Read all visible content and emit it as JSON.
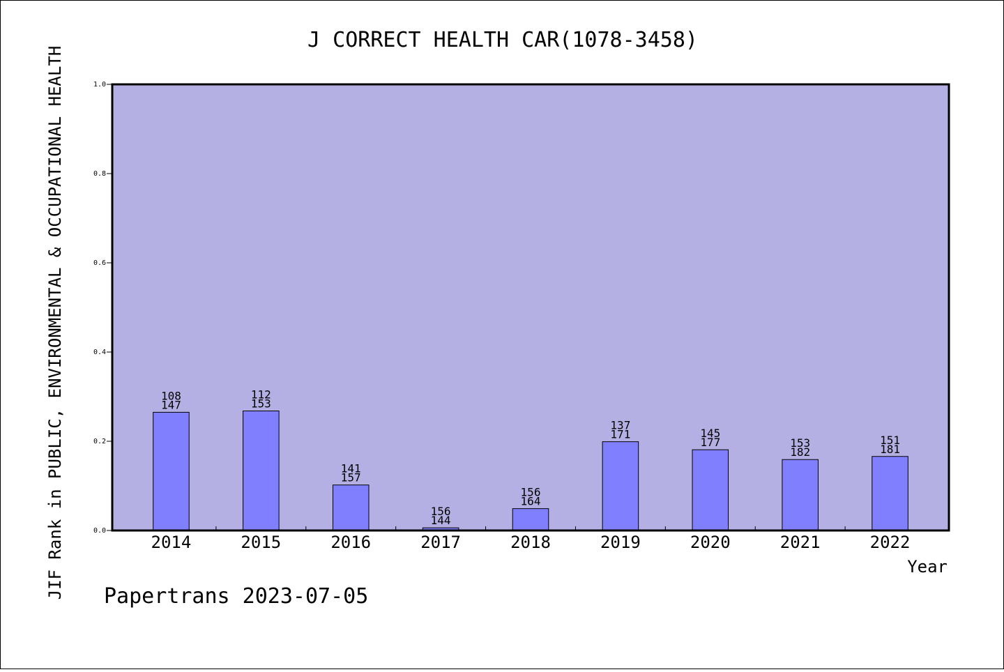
{
  "chart_data": {
    "type": "bar",
    "title": "J CORRECT HEALTH CAR(1078-3458)",
    "ylabel": "JIF Rank in PUBLIC, ENVIRONMENTAL & OCCUPATIONAL HEALTH",
    "xlabel": "Year",
    "ylim": [
      0,
      1.0
    ],
    "yticks": [
      "0.0",
      "0.2",
      "0.4",
      "0.6",
      "0.8",
      "1.0"
    ],
    "categories": [
      "2014",
      "2015",
      "2016",
      "2017",
      "2018",
      "2019",
      "2020",
      "2021",
      "2022"
    ],
    "values": [
      0.265,
      0.268,
      0.102,
      0.006,
      0.049,
      0.199,
      0.181,
      0.159,
      0.166
    ],
    "labels_top": [
      "108",
      "112",
      "141",
      "156",
      "156",
      "137",
      "145",
      "153",
      "151"
    ],
    "labels_bottom": [
      "147",
      "153",
      "157",
      "144",
      "164",
      "171",
      "177",
      "182",
      "181"
    ],
    "grid": false,
    "colors": {
      "plot_bg": "#b5b0e3",
      "bar_fill": "#8080ff",
      "bar_stroke": "#000000"
    }
  },
  "footer": {
    "text": "Papertrans 2023-07-05"
  }
}
